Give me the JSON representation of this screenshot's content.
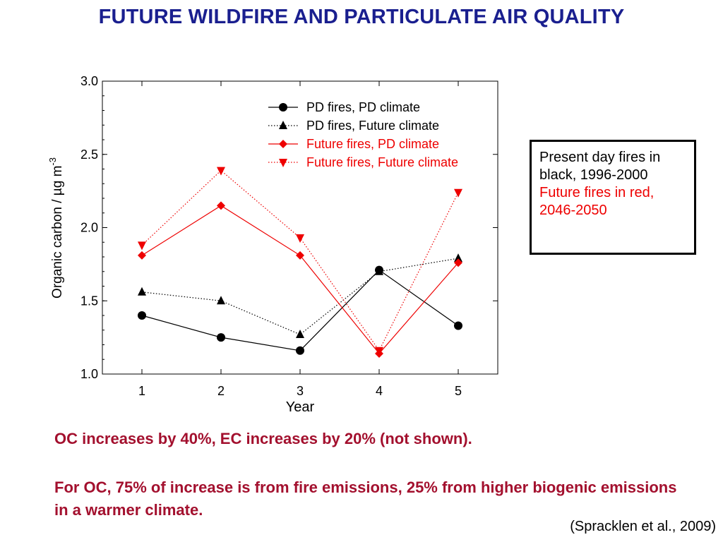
{
  "slide": {
    "title": "FUTURE WILDFIRE AND PARTICULATE AIR QUALITY"
  },
  "note_box": {
    "line1": "Present day fires in",
    "line2": "black, 1996-2000",
    "line3": "Future fires in red,",
    "line4": "2046-2050"
  },
  "findings": {
    "line1": "OC increases by 40%, EC increases by 20% (not shown).",
    "line2": "For OC, 75% of increase is from fire emissions, 25% from higher biogenic emissions in a warmer climate."
  },
  "citation": "(Spracklen et al., 2009)",
  "colors": {
    "title": "#1a1f8f",
    "finding": "#a3102e",
    "series_black": "#000000",
    "series_red": "#ee0000"
  },
  "chart_data": {
    "type": "line",
    "title": "",
    "xlabel": "Year",
    "ylabel": "Organic carbon / µg m",
    "ylabel_superscript": "-3",
    "x": [
      1,
      2,
      3,
      4,
      5
    ],
    "xlim": [
      0.5,
      5.5
    ],
    "ylim": [
      1.0,
      3.0
    ],
    "x_ticks": [
      "1",
      "2",
      "3",
      "4",
      "5"
    ],
    "y_ticks": [
      "1.0",
      "1.5",
      "2.0",
      "2.5",
      "3.0"
    ],
    "grid": false,
    "legend_position": "top-right",
    "series": [
      {
        "name": "PD fires, PD climate",
        "values": [
          1.4,
          1.25,
          1.16,
          1.71,
          1.33
        ],
        "color": "#000000",
        "marker": "circle",
        "line": "solid"
      },
      {
        "name": "PD fires, Future climate",
        "values": [
          1.56,
          1.5,
          1.27,
          1.7,
          1.79
        ],
        "color": "#000000",
        "marker": "triangle-up",
        "line": "dotted"
      },
      {
        "name": "Future fires, PD climate",
        "values": [
          1.81,
          2.15,
          1.81,
          1.14,
          1.76
        ],
        "color": "#ee0000",
        "marker": "diamond",
        "line": "solid"
      },
      {
        "name": "Future fires, Future climate",
        "values": [
          1.88,
          2.39,
          1.93,
          1.16,
          2.24
        ],
        "color": "#ee0000",
        "marker": "triangle-down",
        "line": "dotted"
      }
    ]
  }
}
